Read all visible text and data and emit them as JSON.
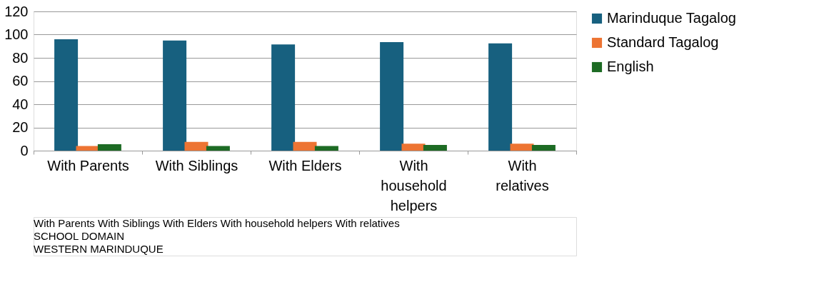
{
  "chart_data": {
    "type": "bar",
    "categories": [
      "With Parents",
      "With Siblings",
      "With Elders",
      "With household helpers",
      "With relatives"
    ],
    "series": [
      {
        "name": "Marinduque Tagalog",
        "color": "#17607f",
        "values": [
          96,
          95,
          91.5,
          93.5,
          92.5
        ]
      },
      {
        "name": "Standard Tagalog",
        "color": "#ed7433",
        "values": [
          4,
          7.5,
          7.5,
          6,
          6
        ]
      },
      {
        "name": "English",
        "color": "#1d6b24",
        "values": [
          5.5,
          4,
          4,
          5,
          5
        ]
      }
    ],
    "ylim": [
      0,
      120
    ],
    "yticks": [
      0,
      20,
      40,
      60,
      80,
      100,
      120
    ],
    "grid": "y",
    "legend": "right",
    "annotations": [
      "With Parents With Siblings With Elders With household helpers With relatives",
      "SCHOOL DOMAIN",
      "WESTERN MARINDUQUE"
    ]
  }
}
